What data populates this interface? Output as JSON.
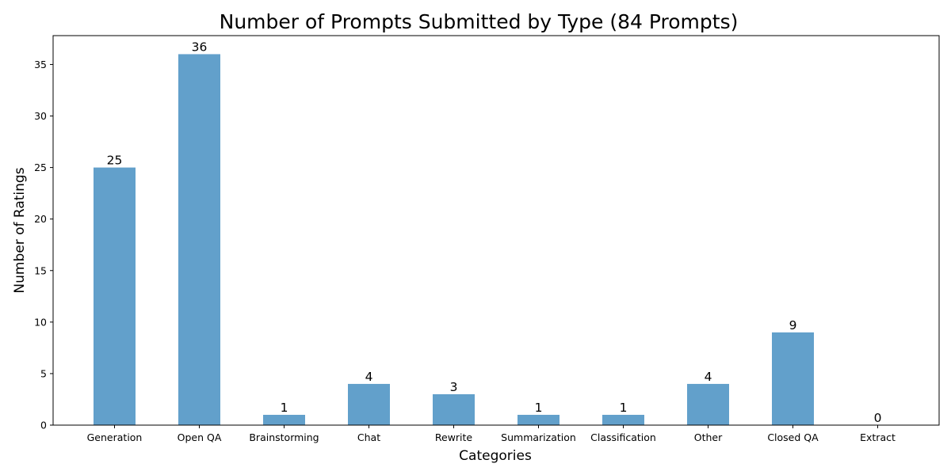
{
  "chart_data": {
    "type": "bar",
    "title": "Number of Prompts Submitted by Type (84 Prompts)",
    "xlabel": "Categories",
    "ylabel": "Number of Ratings",
    "categories": [
      "Generation",
      "Open QA",
      "Brainstorming",
      "Chat",
      "Rewrite",
      "Summarization",
      "Classification",
      "Other",
      "Closed QA",
      "Extract"
    ],
    "values": [
      25,
      36,
      1,
      4,
      3,
      1,
      1,
      4,
      9,
      0
    ],
    "data_labels": [
      "25",
      "36",
      "1",
      "4",
      "3",
      "1",
      "1",
      "4",
      "9",
      "0"
    ],
    "yticks": [
      0,
      5,
      10,
      15,
      20,
      25,
      30,
      35
    ],
    "ytick_labels": [
      "0",
      "5",
      "10",
      "15",
      "20",
      "25",
      "30",
      "35"
    ],
    "ylim": [
      0,
      37.8
    ],
    "grid": false,
    "legend": "none",
    "bar_color": "#62a0cb",
    "axis_color": "#000000"
  }
}
